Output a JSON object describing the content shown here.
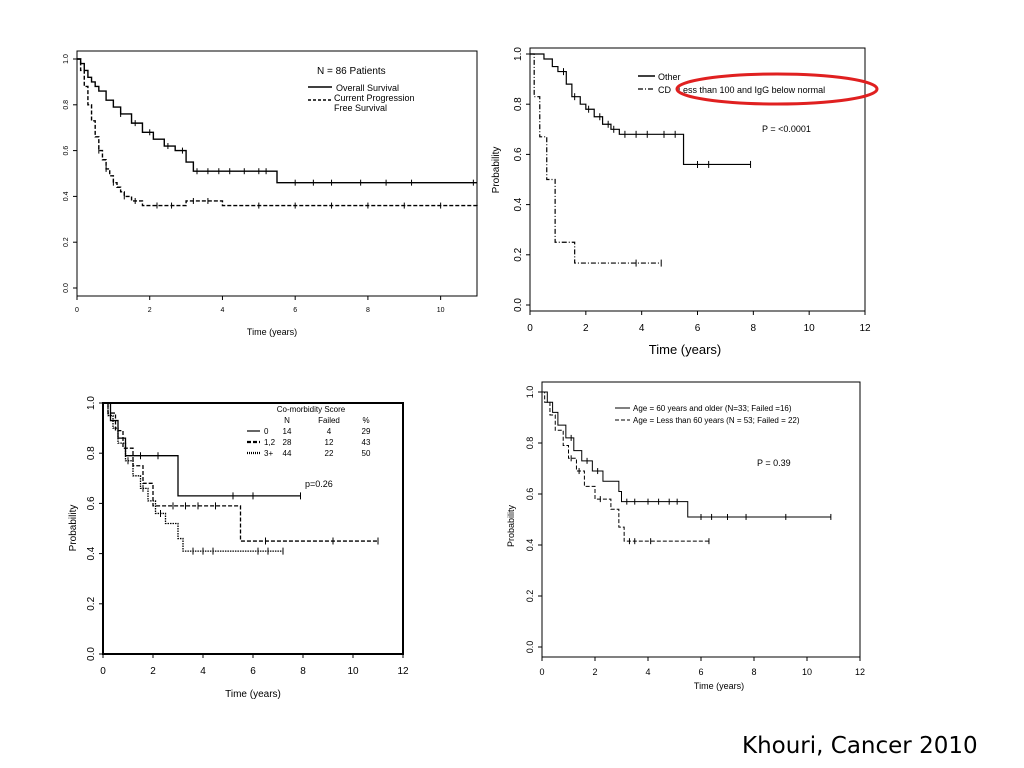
{
  "citation": "Khouri, Cancer 2010",
  "chart_data": [
    {
      "type": "line",
      "panel": "top-left",
      "xlabel": "Time (years)",
      "ylabel": "",
      "xlim": [
        0,
        11
      ],
      "ylim": [
        0,
        1
      ],
      "xticks": [
        "0",
        "2",
        "4",
        "6",
        "8",
        "10"
      ],
      "yticks": [
        "0.0",
        "0.2",
        "0.4",
        "0.6",
        "0.8",
        "1.0"
      ],
      "annotations": [
        "N = 86 Patients"
      ],
      "legend_position": "top-right",
      "series": [
        {
          "name": "Overall Survival",
          "style": "solid",
          "x": [
            0,
            0.1,
            0.2,
            0.3,
            0.4,
            0.5,
            0.6,
            0.8,
            1.0,
            1.2,
            1.5,
            1.8,
            2.1,
            2.4,
            2.7,
            3.0,
            3.2,
            4.0,
            5.5,
            11
          ],
          "y": [
            1.0,
            0.98,
            0.95,
            0.92,
            0.9,
            0.88,
            0.86,
            0.82,
            0.79,
            0.76,
            0.72,
            0.68,
            0.65,
            0.62,
            0.6,
            0.55,
            0.51,
            0.51,
            0.46,
            0.46
          ],
          "censored_x": [
            1.2,
            1.6,
            2.0,
            2.5,
            2.9,
            3.3,
            3.6,
            3.9,
            4.2,
            4.6,
            5.0,
            5.2,
            6.0,
            6.5,
            7.0,
            7.8,
            8.5,
            9.2,
            10.9
          ]
        },
        {
          "name": "Current Progression Free Survival",
          "style": "dashed",
          "x": [
            0,
            0.1,
            0.2,
            0.3,
            0.4,
            0.5,
            0.6,
            0.7,
            0.8,
            0.9,
            1.0,
            1.1,
            1.2,
            1.3,
            1.5,
            1.8,
            2.0,
            3.0,
            4.0,
            11
          ],
          "y": [
            1.0,
            0.95,
            0.88,
            0.8,
            0.73,
            0.66,
            0.6,
            0.56,
            0.52,
            0.49,
            0.46,
            0.44,
            0.42,
            0.4,
            0.38,
            0.36,
            0.36,
            0.38,
            0.36,
            0.355
          ],
          "censored_x": [
            0.6,
            0.8,
            1.0,
            1.3,
            1.6,
            2.2,
            2.6,
            3.2,
            3.6,
            5.0,
            6.0,
            7.0,
            8.0,
            9.0,
            10.0
          ]
        }
      ]
    },
    {
      "type": "line",
      "panel": "top-right",
      "xlabel": "Time (years)",
      "ylabel": "Probability",
      "xlim": [
        0,
        12
      ],
      "ylim": [
        0,
        1
      ],
      "xticks": [
        "0",
        "2",
        "4",
        "6",
        "8",
        "10",
        "12"
      ],
      "yticks": [
        "0.0",
        "0.2",
        "0.4",
        "0.6",
        "0.8",
        "1.0"
      ],
      "annotations": [
        "P = <0.0001"
      ],
      "highlight": "Less than 100 and IgG below normal",
      "legend_position": "top-right",
      "series": [
        {
          "name": "Other",
          "style": "solid",
          "x": [
            0,
            0.5,
            0.8,
            1.0,
            1.3,
            1.5,
            1.8,
            2.0,
            2.3,
            2.6,
            2.9,
            3.2,
            5.5,
            7.9
          ],
          "y": [
            1.0,
            0.98,
            0.95,
            0.93,
            0.88,
            0.83,
            0.8,
            0.78,
            0.75,
            0.72,
            0.7,
            0.68,
            0.56,
            0.56
          ],
          "censored_x": [
            1.2,
            1.6,
            2.1,
            2.5,
            2.8,
            3.0,
            3.4,
            3.8,
            4.2,
            4.8,
            5.2,
            6.0,
            6.4,
            7.9
          ]
        },
        {
          "name": "CD",
          "style": "dashdot",
          "x": [
            0,
            0.15,
            0.35,
            0.6,
            0.9,
            1.6,
            4.7
          ],
          "y": [
            1.0,
            0.83,
            0.67,
            0.5,
            0.25,
            0.167,
            0.167
          ],
          "censored_x": [
            3.8,
            4.7
          ]
        }
      ]
    },
    {
      "type": "line",
      "panel": "bottom-left",
      "xlabel": "Time (years)",
      "ylabel": "Probability",
      "xlim": [
        0,
        12
      ],
      "ylim": [
        0,
        1
      ],
      "xticks": [
        "0",
        "2",
        "4",
        "6",
        "8",
        "10",
        "12"
      ],
      "yticks": [
        "0.0",
        "0.2",
        "0.4",
        "0.6",
        "0.8",
        "1.0"
      ],
      "annotations": [
        "p=0.26"
      ],
      "legend_title": "Co-morbidity Score",
      "legend_columns": [
        "N",
        "Failed",
        "%"
      ],
      "legend_position": "top-right",
      "series": [
        {
          "name": "0",
          "n": "14",
          "failed": "4",
          "pct": "29",
          "style": "solid",
          "x": [
            0,
            0.3,
            0.6,
            0.9,
            3.0,
            7.9
          ],
          "y": [
            1.0,
            0.93,
            0.86,
            0.79,
            0.63,
            0.63
          ],
          "censored_x": [
            1.5,
            2.2,
            5.2,
            6.0,
            7.9
          ]
        },
        {
          "name": "1,2",
          "n": "28",
          "failed": "12",
          "pct": "43",
          "style": "dashed",
          "x": [
            0,
            0.2,
            0.5,
            0.8,
            1.2,
            1.6,
            2.0,
            5.5,
            11.0
          ],
          "y": [
            1.0,
            0.96,
            0.89,
            0.82,
            0.75,
            0.68,
            0.59,
            0.45,
            0.45
          ],
          "censored_x": [
            2.8,
            3.3,
            3.8,
            4.5,
            6.5,
            9.2,
            11.0
          ]
        },
        {
          "name": "3+",
          "n": "44",
          "failed": "22",
          "pct": "50",
          "style": "dotted",
          "x": [
            0,
            0.2,
            0.4,
            0.6,
            0.9,
            1.2,
            1.5,
            1.8,
            2.1,
            2.5,
            3.0,
            3.2,
            7.2
          ],
          "y": [
            1.0,
            0.95,
            0.9,
            0.84,
            0.77,
            0.71,
            0.66,
            0.61,
            0.56,
            0.52,
            0.46,
            0.41,
            0.41
          ],
          "censored_x": [
            1.0,
            1.6,
            2.3,
            3.6,
            4.0,
            4.4,
            6.2,
            6.6,
            7.2
          ]
        }
      ]
    },
    {
      "type": "line",
      "panel": "bottom-right",
      "xlabel": "Time (years)",
      "ylabel": "Probability",
      "xlim": [
        0,
        12
      ],
      "ylim": [
        0,
        1
      ],
      "xticks": [
        "0",
        "2",
        "4",
        "6",
        "8",
        "10",
        "12"
      ],
      "yticks": [
        "0.0",
        "0.2",
        "0.4",
        "0.6",
        "0.8",
        "1.0"
      ],
      "annotations": [
        "P = 0.39"
      ],
      "legend_position": "top-right",
      "series": [
        {
          "name": "Age = 60 years and older (N=33; Failed =16)",
          "style": "solid",
          "x": [
            0,
            0.2,
            0.4,
            0.6,
            0.9,
            1.2,
            1.5,
            1.9,
            2.3,
            2.9,
            3.0,
            5.5,
            10.9
          ],
          "y": [
            1.0,
            0.96,
            0.92,
            0.87,
            0.82,
            0.77,
            0.73,
            0.69,
            0.65,
            0.61,
            0.57,
            0.51,
            0.51
          ],
          "censored_x": [
            1.1,
            1.7,
            2.1,
            3.2,
            3.5,
            4.0,
            4.4,
            4.8,
            5.1,
            6.0,
            6.4,
            7.0,
            7.7,
            9.2,
            10.9
          ]
        },
        {
          "name": "Age = Less than 60 years (N = 53; Failed = 22)",
          "style": "dashed",
          "x": [
            0,
            0.1,
            0.3,
            0.5,
            0.8,
            1.0,
            1.3,
            1.6,
            2.0,
            2.6,
            2.9,
            3.1,
            6.3
          ],
          "y": [
            1.0,
            0.96,
            0.91,
            0.85,
            0.79,
            0.74,
            0.69,
            0.63,
            0.58,
            0.54,
            0.47,
            0.415,
            0.415
          ],
          "censored_x": [
            1.1,
            1.4,
            2.2,
            3.3,
            3.5,
            4.1,
            6.3
          ]
        }
      ]
    }
  ]
}
